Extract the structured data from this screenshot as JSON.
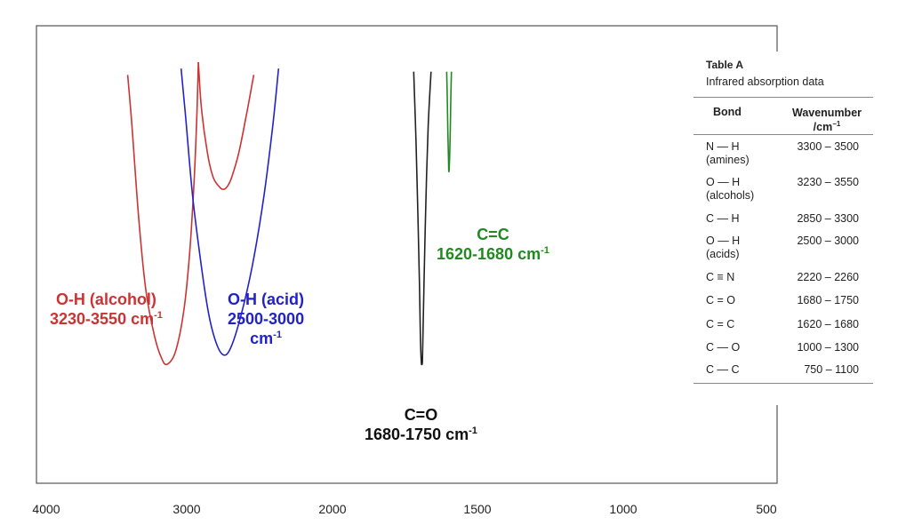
{
  "chart_data": {
    "type": "line",
    "x_axis": {
      "reversed": true,
      "xlim": [
        4000,
        500
      ],
      "ticks": [
        4000,
        3000,
        2000,
        1500,
        1000,
        500
      ]
    },
    "grid": false,
    "series": [
      {
        "name": "O-H (alcohol)",
        "color": "#cc3333",
        "x": [
          3420,
          3390,
          3340,
          3290,
          3230,
          3180,
          3140,
          3080,
          3020,
          2980,
          2950,
          2930,
          2920
        ],
        "y": [
          96,
          80,
          50,
          28,
          14,
          7,
          5,
          9,
          22,
          40,
          62,
          84,
          100
        ]
      },
      {
        "name": "O-H (acid)",
        "color": "#2222cc",
        "x": [
          3040,
          3010,
          2960,
          2900,
          2850,
          2800,
          2750,
          2700,
          2630,
          2550,
          2470,
          2410,
          2370
        ],
        "y": [
          98,
          84,
          58,
          36,
          21,
          12,
          8,
          10,
          20,
          36,
          58,
          80,
          98
        ]
      },
      {
        "name": "O-H (alcohol) shoulder",
        "color": "#cc3333",
        "x": [
          2920,
          2900,
          2860,
          2820,
          2780,
          2750,
          2720,
          2690,
          2640,
          2580,
          2540
        ],
        "y": [
          100,
          86,
          72,
          64,
          61,
          60,
          61,
          64,
          72,
          86,
          96
        ]
      },
      {
        "name": "C=O",
        "color": "#222222",
        "x": [
          1720,
          1712,
          1705,
          1700,
          1697,
          1694,
          1692,
          1690,
          1688,
          1684,
          1678,
          1670,
          1660
        ],
        "y": [
          97,
          75,
          50,
          30,
          14,
          6,
          5,
          6,
          14,
          32,
          56,
          80,
          97
        ]
      },
      {
        "name": "C=C",
        "color": "#228822",
        "x": [
          1606,
          1604,
          1602,
          1600,
          1599,
          1598,
          1596,
          1594,
          1592,
          1590
        ],
        "y": [
          97,
          88,
          78,
          70,
          66,
          66,
          70,
          78,
          88,
          97
        ]
      }
    ]
  },
  "labels": {
    "alcohol": {
      "line1": "O-H (alcohol)",
      "line2": "3230-3550 cm",
      "sup": "-1",
      "color": "#cc3333"
    },
    "acid": {
      "line1": "O-H (acid)",
      "line2": "2500-3000",
      "line3": "cm",
      "sup": "-1",
      "color": "#2222cc"
    },
    "co": {
      "line1": "C=O",
      "line2": "1680-1750 cm",
      "sup": "-1",
      "color": "#111111"
    },
    "cc": {
      "line1": "C=C",
      "line2": "1620-1680 cm",
      "sup": "-1",
      "color": "#228822"
    }
  },
  "table": {
    "title": "Table A",
    "subtitle": "Infrared absorption data",
    "header_bond": "Bond",
    "header_wavenumber": "Wavenumber",
    "header_unit": "/cm",
    "header_unit_sup": "−1",
    "rows": [
      {
        "bond": "N — H",
        "note": "(amines)",
        "range": "3300 – 3500"
      },
      {
        "bond": "O — H",
        "note": "(alcohols)",
        "range": "3230 – 3550"
      },
      {
        "bond": "C — H",
        "note": "",
        "range": "2850 – 3300"
      },
      {
        "bond": "O — H",
        "note": "(acids)",
        "range": "2500 – 3000"
      },
      {
        "bond": "C ≡ N",
        "note": "",
        "range": "2220 – 2260"
      },
      {
        "bond": "C = O",
        "note": "",
        "range": "1680 – 1750"
      },
      {
        "bond": "C = C",
        "note": "",
        "range": "1620 – 1680"
      },
      {
        "bond": "C — O",
        "note": "",
        "range": "1000 – 1300"
      },
      {
        "bond": "C — C",
        "note": "",
        "range": "750 – 1100"
      }
    ]
  }
}
